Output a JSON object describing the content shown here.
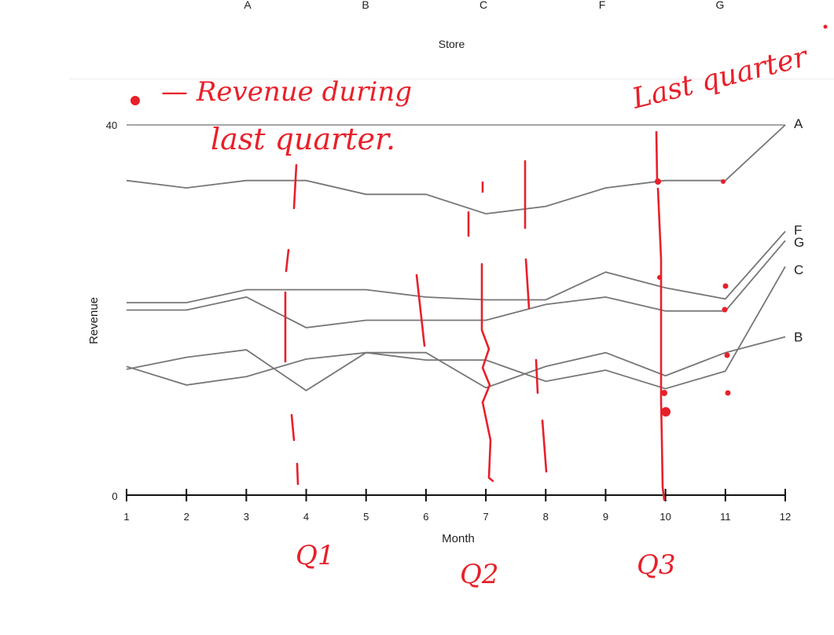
{
  "top_panel": {
    "xlabel": "Store",
    "ticks": [
      "A",
      "B",
      "C",
      "F",
      "G"
    ]
  },
  "chart_data": {
    "type": "line",
    "title": "",
    "xlabel": "Month",
    "ylabel": "Revenue",
    "x": [
      1,
      2,
      3,
      4,
      5,
      6,
      7,
      8,
      9,
      10,
      11,
      12
    ],
    "x_tick_labels": [
      "1",
      "2",
      "3",
      "4",
      "5",
      "6",
      "7",
      "8",
      "9",
      "10",
      "11",
      "12"
    ],
    "y_tick_labels": [
      "0",
      "40"
    ],
    "xlim": [
      1,
      12
    ],
    "ylim": [
      0,
      40
    ],
    "grid": false,
    "legend": "direct labels at right end",
    "series": [
      {
        "name": "A",
        "values": [
          34,
          33.2,
          34,
          34,
          32.5,
          32.5,
          30.4,
          31.2,
          33.2,
          34,
          34,
          40
        ]
      },
      {
        "name": "F",
        "values": [
          20.8,
          20.8,
          22.2,
          22.2,
          22.2,
          21.4,
          21.1,
          21.1,
          24.1,
          22.4,
          21.2,
          28.5
        ]
      },
      {
        "name": "G",
        "values": [
          20,
          20,
          21.4,
          18.1,
          18.9,
          18.9,
          18.9,
          20.6,
          21.4,
          19.9,
          19.9,
          27.5
        ]
      },
      {
        "name": "C",
        "values": [
          13.9,
          11.9,
          12.8,
          14.7,
          15.4,
          14.6,
          14.6,
          12.3,
          13.5,
          11.5,
          13.4,
          24.7
        ]
      },
      {
        "name": "B",
        "values": [
          13.6,
          14.9,
          15.7,
          11.3,
          15.4,
          15.4,
          11.6,
          13.9,
          15.4,
          12.9,
          15.4,
          17.1
        ]
      }
    ],
    "colors": {
      "lines": "#777777",
      "annotation": "#e8202a"
    }
  },
  "annotations": {
    "legend_note_line1": "— Revenue during",
    "legend_note_line2": "last quarter.",
    "top_right_note": "Last quarter",
    "q1": "Q1",
    "q2": "Q2",
    "q3": "Q3"
  }
}
